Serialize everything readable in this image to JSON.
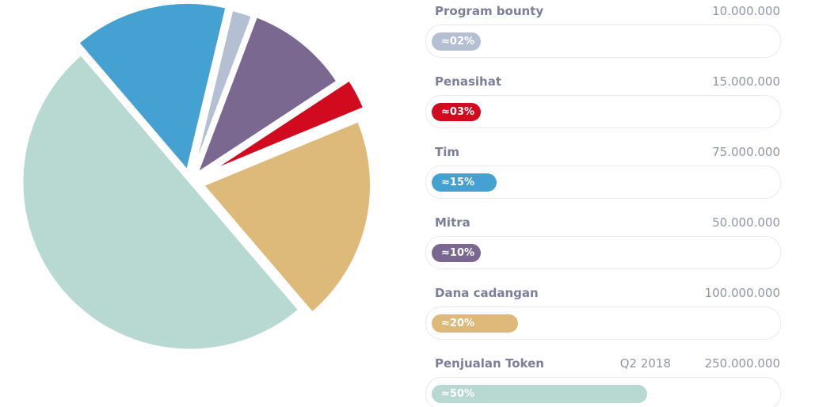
{
  "chart_data": {
    "type": "pie",
    "title": "",
    "categories": [
      "Program bounty",
      "Penasihat",
      "Tim",
      "Mitra",
      "Dana cadangan",
      "Penjualan Token"
    ],
    "values": [
      10000000,
      15000000,
      75000000,
      50000000,
      100000000,
      250000000
    ],
    "percent_labels": [
      "≈02%",
      "≈03%",
      "≈15%",
      "≈10%",
      "≈20%",
      "≈50%"
    ],
    "percent_values": [
      2,
      3,
      15,
      10,
      20,
      50
    ],
    "colors": [
      "#b5bfd2",
      "#d20a1f",
      "#45a1d1",
      "#7a6890",
      "#deba7a",
      "#b7d9d2"
    ],
    "legend": "right"
  },
  "rows": [
    {
      "label": "Program bounty",
      "amount": "10.000.000",
      "date": "",
      "badge": "≈02%",
      "percent": 2,
      "color": "#b5bfd2"
    },
    {
      "label": "Penasihat",
      "amount": "15.000.000",
      "date": "",
      "badge": "≈03%",
      "percent": 3,
      "color": "#d20a1f"
    },
    {
      "label": "Tim",
      "amount": "75.000.000",
      "date": "",
      "badge": "≈15%",
      "percent": 15,
      "color": "#45a1d1"
    },
    {
      "label": "Mitra",
      "amount": "50.000.000",
      "date": "",
      "badge": "≈10%",
      "percent": 10,
      "color": "#7a6890"
    },
    {
      "label": "Dana cadangan",
      "amount": "100.000.000",
      "date": "",
      "badge": "≈20%",
      "percent": 20,
      "color": "#deba7a"
    },
    {
      "label": "Penjualan Token",
      "amount": "250.000.000",
      "date": "Q2 2018",
      "badge": "≈50%",
      "percent": 50,
      "color": "#b7d9d2"
    }
  ]
}
